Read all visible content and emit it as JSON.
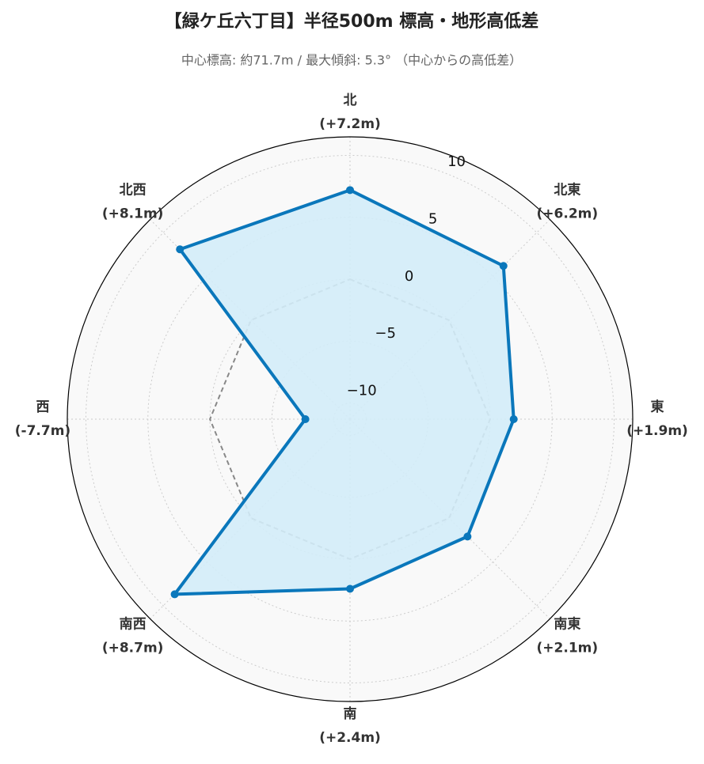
{
  "chart_data": {
    "type": "radar",
    "title": "【緑ケ丘六丁目】半径500m 標高・地形高低差",
    "subtitle": "中心標高: 約71.7m / 最大傾斜: 5.3° （中心からの高低差）",
    "categories": [
      "北",
      "北東",
      "東",
      "南東",
      "南",
      "南西",
      "西",
      "北西"
    ],
    "values": [
      7.2,
      6.2,
      1.9,
      2.1,
      2.4,
      8.7,
      -7.7,
      8.1
    ],
    "value_labels": [
      "(+7.2m)",
      "(+6.2m)",
      "(+1.9m)",
      "(+2.1m)",
      "(+2.4m)",
      "(+8.7m)",
      "(-7.7m)",
      "(+8.1m)"
    ],
    "color": "#0a77bb",
    "fill": "#d3ecf8",
    "ylim": [
      -11.3,
      11.5
    ],
    "yticks": [
      {
        "value": -10,
        "label": "−10"
      },
      {
        "value": -5,
        "label": "−5"
      },
      0,
      5,
      10
    ],
    "grid": true,
    "zero_line": true
  }
}
